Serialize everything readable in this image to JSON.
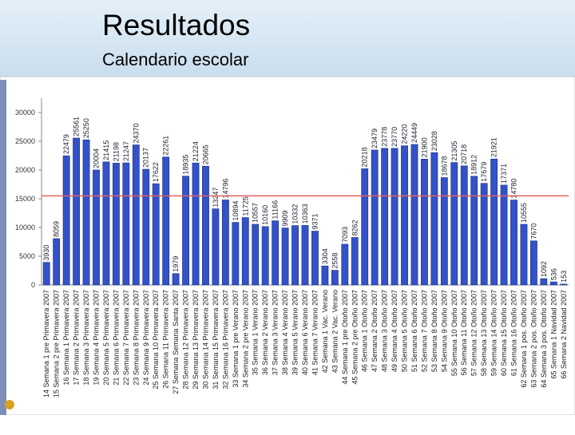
{
  "chart_data": {
    "type": "bar",
    "title": "Resultados",
    "subtitle": "Calendario escolar",
    "categories": [
      "14 Semana 1 pre Primavera 2007",
      "15 Semana 2 pre Primavera 2007",
      "16 Semana 1 Primavera 2007",
      "17 Semana 2 Primavera 2007",
      "18 Semana 3 Primavera 2007",
      "19 Semana 4 Primavera 2007",
      "20 Semana 5 Primavera 2007",
      "21 Semana 6 Primavera 2007",
      "22 Semana 7 Primavera 2007",
      "23 Semana 8 Primavera 2007",
      "24 Semana 9 Primavera 2007",
      "25 Semana 10 Primavera 2007",
      "26 Semana 11 Primavera 2007",
      "27 Semana Semana Santa 2007",
      "28 Semana 12 Primavera 2007",
      "29 Semana 13 Primavera 2007",
      "30 Semana 14 Primavera 2007",
      "31 Semana 15 Primavera 2007",
      "32 Semana 16 Primavera 2007",
      "33 Semana 1 pre Verano 2007",
      "34 Semana 2 pre Verano 2007",
      "35 Semana 1 Verano 2007",
      "36 Semana 2 Verano 2007",
      "37 Semana 3 Verano 2007",
      "38 Semana 4 Verano 2007",
      "39 Semana 5 Verano 2007",
      "40 Semana 6 Verano 2007",
      "41 Semana 7 Verano 2007",
      "42 Semana 1 Vac. Verano",
      "43 Semana 2 Vac. Verano",
      "44 Semana 1 pre Otoño 2007",
      "45 Semana 2 pre Otoño 2007",
      "46 Semana 1 Otoño 2007",
      "47 Semana 2 Otoño 2007",
      "48 Semana 3 Otoño 2007",
      "49 Semana 4 Otoño 2007",
      "50 Semana 5 Otoño 2007",
      "51 Semana 6 Otoño 2007",
      "52 Semana 7 Otoño 2007",
      "53 Semana 8 Otoño 2007",
      "54 Semana 9 Otoño 2007",
      "55 Semana 10 Otoño 2007",
      "56 Semana 11 Otoño 2007",
      "57 Semana 12 Otoño 2007",
      "58 Semana 13 Otoño 2007",
      "59 Semana 14 Otoño 2007",
      "60 Semana 15 Otoño 2007",
      "61 Semana 16 Otoño 2007",
      "62 Semana 1 pos. Otoño 2007",
      "63 Semana 2 pos. Otoño 2007",
      "64 Semana 3 pos. Otoño 2007",
      "65 Semana 1 Navidad 2007",
      "66 Semana 2 Navidad 2007"
    ],
    "values": [
      3930,
      8059,
      22479,
      25561,
      25250,
      20004,
      21415,
      21198,
      21247,
      24370,
      20137,
      17622,
      22261,
      1979,
      18935,
      21224,
      20665,
      13247,
      14796,
      10894,
      11725,
      10557,
      10160,
      11166,
      9909,
      10332,
      10363,
      9371,
      3304,
      2558,
      7093,
      8262,
      20218,
      23479,
      23778,
      23770,
      24220,
      24449,
      21900,
      23028,
      18678,
      21305,
      20718,
      18912,
      17679,
      21921,
      17371,
      14780,
      10555,
      7670,
      1092,
      536,
      153
    ],
    "color": "#3352c8",
    "reference_line": 15500,
    "reference_color": "#e06060",
    "ylim": [
      0,
      30000
    ],
    "yticks": [
      0,
      5000,
      10000,
      15000,
      20000,
      25000,
      30000
    ],
    "grid": false
  }
}
